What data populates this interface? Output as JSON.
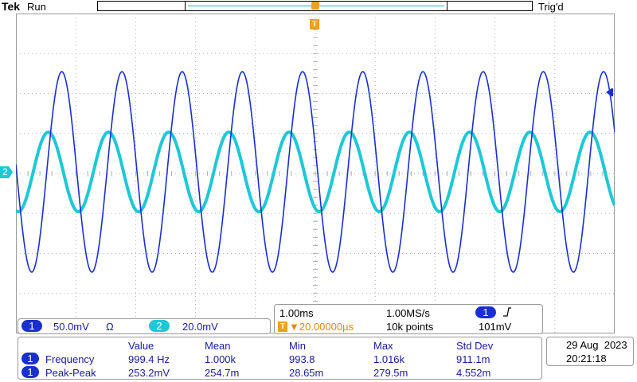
{
  "header": {
    "brand": "Tek",
    "run_status": "Run",
    "trigger_status": "Trig'd",
    "trigger_marker": "T"
  },
  "channel_marker": "2",
  "channels": [
    {
      "number": "1",
      "scale": "50.0mV",
      "coupling": "Ω",
      "color": "#1a2fd0"
    },
    {
      "number": "2",
      "scale": "20.0mV",
      "color": "#1ec8d6"
    }
  ],
  "horizontal": {
    "timebase": "1.00ms",
    "sample_rate": "1.00MS/s",
    "trigger_channel": "1",
    "trigger_slope_icon": "rising-edge-icon",
    "trigger_position": "▼20.00000µs",
    "record_length": "10k points",
    "trigger_level": "101mV"
  },
  "measurements": {
    "headers": [
      "Value",
      "Mean",
      "Min",
      "Max",
      "Std Dev"
    ],
    "rows": [
      {
        "channel": "1",
        "name": "Frequency",
        "values": [
          "999.4 Hz",
          "1.000k",
          "993.8",
          "1.016k",
          "911.1m"
        ]
      },
      {
        "channel": "1",
        "name": "Peak-Peak",
        "values": [
          "253.2mV",
          "254.7m",
          "28.65m",
          "279.5m",
          "4.552m"
        ]
      }
    ]
  },
  "datetime": {
    "date": "29 Aug  2023",
    "time": "20:21:18"
  },
  "colors": {
    "ch1": "#1a2fd0",
    "ch2": "#1ec8d6",
    "trigger": "#f0a020",
    "grid": "#b0b0b0"
  }
}
